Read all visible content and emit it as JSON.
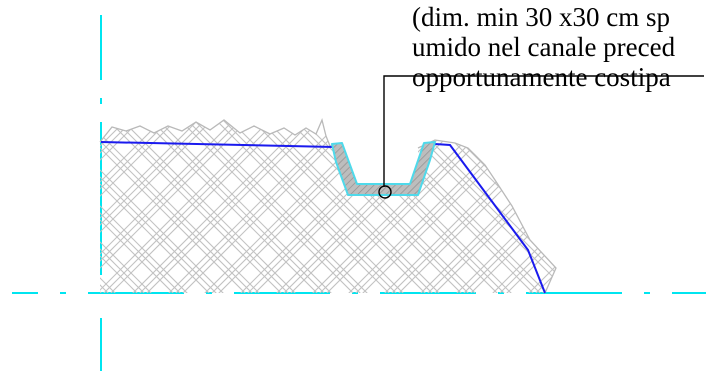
{
  "annotation": {
    "lines": [
      "(dim. min 30 x30 cm sp",
      "umido nel canale preced",
      "opportunamente costipa"
    ]
  },
  "colors": {
    "background": "#ffffff",
    "axis": "#00e5f0",
    "profile": "#1a1aee",
    "channel_outline": "#4fd9ea",
    "channel_fill": "#bdbdbd",
    "hatch": "#c2c2c2",
    "leader": "#000000"
  }
}
